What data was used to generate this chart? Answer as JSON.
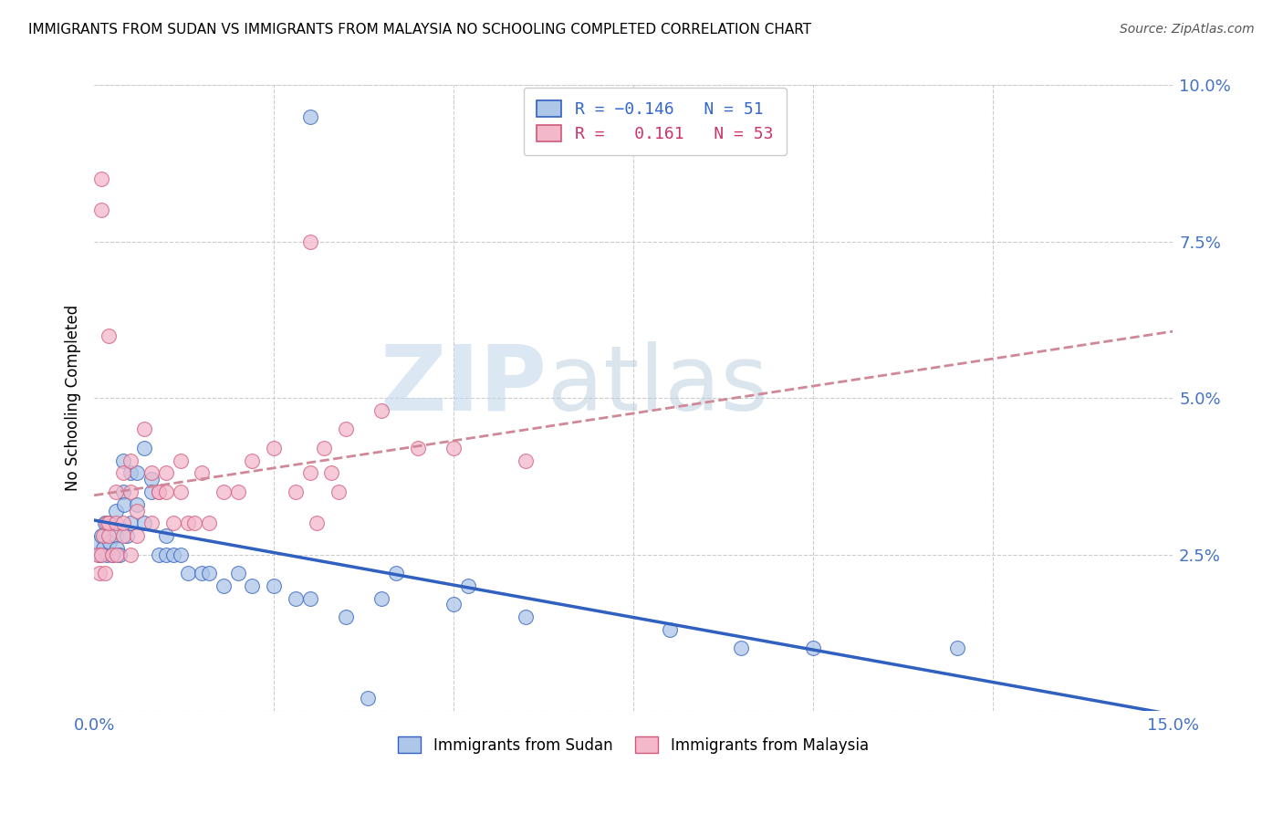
{
  "title": "IMMIGRANTS FROM SUDAN VS IMMIGRANTS FROM MALAYSIA NO SCHOOLING COMPLETED CORRELATION CHART",
  "source": "Source: ZipAtlas.com",
  "ylabel": "No Schooling Completed",
  "xlim": [
    0.0,
    0.15
  ],
  "ylim": [
    0.0,
    0.1
  ],
  "xticks": [
    0.0,
    0.025,
    0.05,
    0.075,
    0.1,
    0.125,
    0.15
  ],
  "yticks": [
    0.0,
    0.025,
    0.05,
    0.075,
    0.1
  ],
  "sudan_R": -0.146,
  "sudan_N": 51,
  "malaysia_R": 0.161,
  "malaysia_N": 53,
  "sudan_color": "#aec6e8",
  "malaysia_color": "#f4b8cb",
  "sudan_line_color": "#3060c0",
  "malaysia_line_color": "#d05878",
  "malaysia_dash_color": "#d08898",
  "watermark_zip": "ZIP",
  "watermark_atlas": "atlas",
  "sudan_points_x": [
    0.0005,
    0.0008,
    0.001,
    0.0012,
    0.0015,
    0.0018,
    0.002,
    0.0022,
    0.0025,
    0.003,
    0.003,
    0.0032,
    0.0035,
    0.004,
    0.004,
    0.0042,
    0.0045,
    0.005,
    0.005,
    0.006,
    0.006,
    0.007,
    0.007,
    0.008,
    0.008,
    0.009,
    0.01,
    0.01,
    0.011,
    0.012,
    0.013,
    0.015,
    0.016,
    0.018,
    0.02,
    0.022,
    0.025,
    0.028,
    0.03,
    0.035,
    0.038,
    0.04,
    0.042,
    0.05,
    0.052,
    0.06,
    0.08,
    0.09,
    0.1,
    0.12,
    0.03
  ],
  "sudan_points_y": [
    0.027,
    0.025,
    0.028,
    0.026,
    0.03,
    0.025,
    0.03,
    0.027,
    0.025,
    0.032,
    0.028,
    0.026,
    0.025,
    0.035,
    0.04,
    0.033,
    0.028,
    0.038,
    0.03,
    0.038,
    0.033,
    0.042,
    0.03,
    0.037,
    0.035,
    0.025,
    0.025,
    0.028,
    0.025,
    0.025,
    0.022,
    0.022,
    0.022,
    0.02,
    0.022,
    0.02,
    0.02,
    0.018,
    0.018,
    0.015,
    0.002,
    0.018,
    0.022,
    0.017,
    0.02,
    0.015,
    0.013,
    0.01,
    0.01,
    0.01,
    0.095
  ],
  "malaysia_points_x": [
    0.0005,
    0.0008,
    0.001,
    0.0012,
    0.0015,
    0.0018,
    0.002,
    0.002,
    0.0025,
    0.003,
    0.003,
    0.0032,
    0.004,
    0.004,
    0.004,
    0.005,
    0.005,
    0.005,
    0.006,
    0.006,
    0.007,
    0.008,
    0.008,
    0.009,
    0.009,
    0.01,
    0.01,
    0.011,
    0.012,
    0.012,
    0.013,
    0.014,
    0.015,
    0.016,
    0.018,
    0.02,
    0.022,
    0.025,
    0.028,
    0.03,
    0.03,
    0.031,
    0.032,
    0.033,
    0.034,
    0.035,
    0.04,
    0.045,
    0.05,
    0.06,
    0.001,
    0.001,
    0.002
  ],
  "malaysia_points_y": [
    0.025,
    0.022,
    0.025,
    0.028,
    0.022,
    0.03,
    0.028,
    0.03,
    0.025,
    0.03,
    0.035,
    0.025,
    0.028,
    0.038,
    0.03,
    0.035,
    0.04,
    0.025,
    0.032,
    0.028,
    0.045,
    0.038,
    0.03,
    0.035,
    0.035,
    0.035,
    0.038,
    0.03,
    0.04,
    0.035,
    0.03,
    0.03,
    0.038,
    0.03,
    0.035,
    0.035,
    0.04,
    0.042,
    0.035,
    0.038,
    0.075,
    0.03,
    0.042,
    0.038,
    0.035,
    0.045,
    0.048,
    0.042,
    0.042,
    0.04,
    0.08,
    0.085,
    0.06
  ]
}
